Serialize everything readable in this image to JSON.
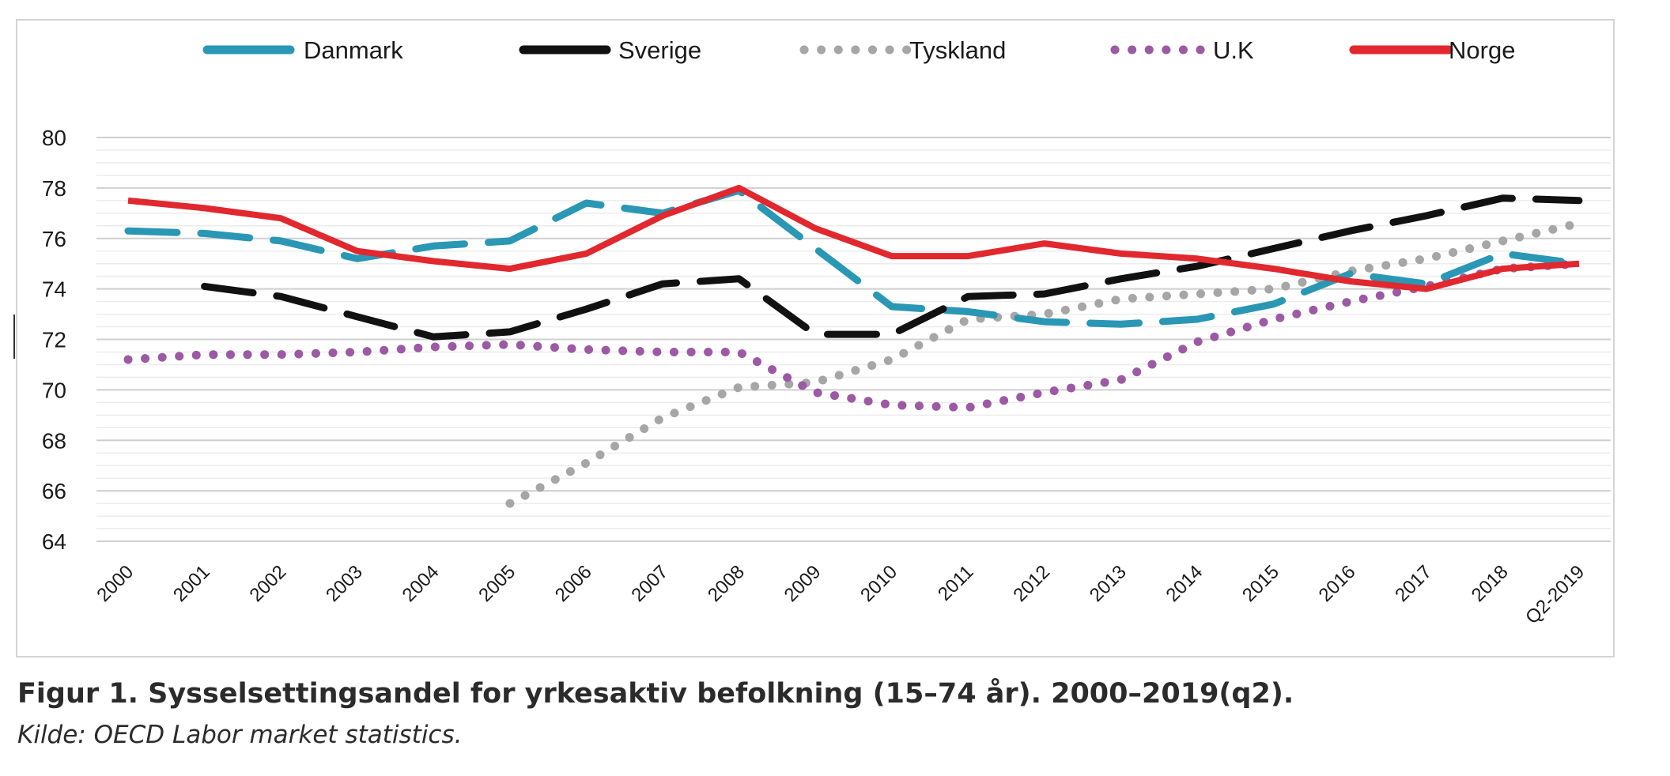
{
  "caption": "Figur 1. Sysselsettingsandel for yrkesaktiv befolkning (15–74 år). 2000–2019(q2).",
  "source": "Kilde: OECD Labor market statistics.",
  "chart_data": {
    "type": "line",
    "title": "",
    "xlabel": "",
    "ylabel": "",
    "x": [
      "2000",
      "2001",
      "2002",
      "2003",
      "2004",
      "2005",
      "2006",
      "2007",
      "2008",
      "2009",
      "2010",
      "2011",
      "2012",
      "2013",
      "2014",
      "2015",
      "2016",
      "2017",
      "2018",
      "Q2-2019"
    ],
    "ylim": [
      64,
      80
    ],
    "yticks": [
      64,
      66,
      68,
      70,
      72,
      74,
      76,
      78,
      80
    ],
    "grid": true,
    "legend_position": "top",
    "series": [
      {
        "name": "Danmark",
        "color": "#2a97b4",
        "style": "dashed",
        "values": [
          76.3,
          76.2,
          75.9,
          75.2,
          75.7,
          75.9,
          77.4,
          77.0,
          77.9,
          75.6,
          73.3,
          73.1,
          72.7,
          72.6,
          72.8,
          73.4,
          74.6,
          74.2,
          75.4,
          75.0
        ]
      },
      {
        "name": "Sverige",
        "color": "#111111",
        "style": "dashed",
        "values": [
          null,
          74.1,
          73.7,
          72.9,
          72.1,
          72.3,
          73.2,
          74.2,
          74.4,
          72.2,
          72.2,
          73.7,
          73.8,
          74.4,
          74.9,
          75.6,
          76.3,
          76.9,
          77.6,
          77.5
        ]
      },
      {
        "name": "Tyskland",
        "color": "#a6a6a6",
        "style": "dotted",
        "values": [
          null,
          null,
          null,
          null,
          null,
          65.5,
          67.1,
          68.9,
          70.1,
          70.3,
          71.2,
          72.8,
          73.0,
          73.6,
          73.8,
          74.0,
          74.7,
          75.2,
          75.9,
          76.6
        ]
      },
      {
        "name": "U.K",
        "color": "#9b5aa3",
        "style": "dotted",
        "values": [
          71.2,
          71.4,
          71.4,
          71.5,
          71.7,
          71.8,
          71.6,
          71.5,
          71.5,
          69.9,
          69.4,
          69.3,
          69.9,
          70.4,
          71.9,
          72.8,
          73.5,
          74.1,
          74.8,
          75.0
        ]
      },
      {
        "name": "Norge",
        "color": "#e0282e",
        "style": "solid",
        "values": [
          77.5,
          77.2,
          76.8,
          75.5,
          75.1,
          74.8,
          75.4,
          76.9,
          78.0,
          76.4,
          75.3,
          75.3,
          75.8,
          75.4,
          75.2,
          74.8,
          74.3,
          74.0,
          74.8,
          75.0
        ]
      }
    ]
  }
}
